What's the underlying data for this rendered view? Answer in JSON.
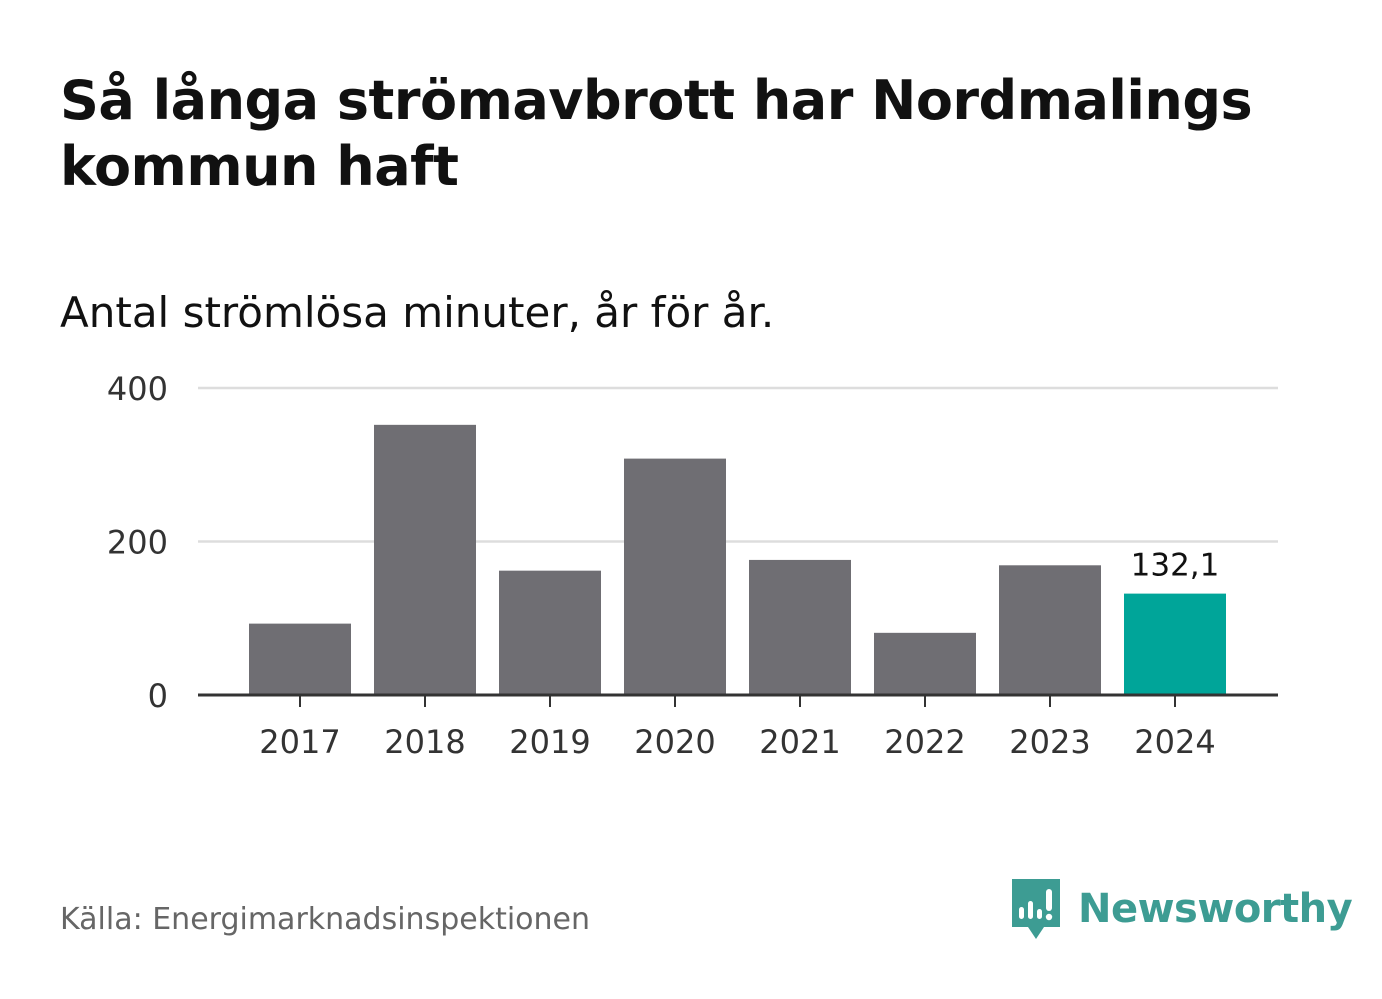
{
  "header": {
    "title": "Så långa strömavbrott har Nordmalings kommun haft",
    "subtitle": "Antal strömlösa minuter, år för år."
  },
  "footer": {
    "source": "Källa: Energimarknadsinspektionen",
    "brand": "Newsworthy"
  },
  "colors": {
    "bar": "#6f6e73",
    "highlight": "#00a599",
    "grid": "#dddddd",
    "axis": "#333333",
    "brand": "#3d9c93"
  },
  "chart_data": {
    "type": "bar",
    "title": "Så långa strömavbrott har Nordmalings kommun haft",
    "subtitle": "Antal strömlösa minuter, år för år.",
    "xlabel": "",
    "ylabel": "",
    "categories": [
      "2017",
      "2018",
      "2019",
      "2020",
      "2021",
      "2022",
      "2023",
      "2024"
    ],
    "values": [
      93,
      352,
      162,
      308,
      176,
      81,
      169,
      132.1
    ],
    "highlight_index": 7,
    "highlight_label": "132,1",
    "ylim": [
      0,
      400
    ],
    "yticks": [
      0,
      200,
      400
    ],
    "ytick_labels": [
      "0",
      "200",
      "400"
    ],
    "grid": true,
    "legend": "none"
  }
}
